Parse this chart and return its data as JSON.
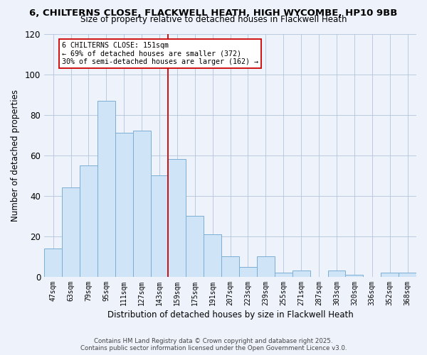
{
  "title1": "6, CHILTERNS CLOSE, FLACKWELL HEATH, HIGH WYCOMBE, HP10 9BB",
  "title2": "Size of property relative to detached houses in Flackwell Heath",
  "xlabel": "Distribution of detached houses by size in Flackwell Heath",
  "ylabel": "Number of detached properties",
  "bin_labels": [
    "47sqm",
    "63sqm",
    "79sqm",
    "95sqm",
    "111sqm",
    "127sqm",
    "143sqm",
    "159sqm",
    "175sqm",
    "191sqm",
    "207sqm",
    "223sqm",
    "239sqm",
    "255sqm",
    "271sqm",
    "287sqm",
    "303sqm",
    "320sqm",
    "336sqm",
    "352sqm",
    "368sqm"
  ],
  "bar_heights": [
    14,
    44,
    55,
    87,
    71,
    72,
    50,
    58,
    30,
    21,
    10,
    5,
    10,
    2,
    3,
    0,
    3,
    1,
    0,
    2,
    2
  ],
  "bar_color": "#d0e4f7",
  "bar_edge_color": "#7bafd4",
  "ylim": [
    0,
    120
  ],
  "yticks": [
    0,
    20,
    40,
    60,
    80,
    100,
    120
  ],
  "vline_index": 7,
  "vline_color": "#cc0000",
  "annotation_title": "6 CHILTERNS CLOSE: 151sqm",
  "annotation_line1": "← 69% of detached houses are smaller (372)",
  "annotation_line2": "30% of semi-detached houses are larger (162) →",
  "annotation_box_color": "#ffffff",
  "annotation_box_edge": "#cc0000",
  "footer1": "Contains HM Land Registry data © Crown copyright and database right 2025.",
  "footer2": "Contains public sector information licensed under the Open Government Licence v3.0.",
  "background_color": "#eef2fb"
}
